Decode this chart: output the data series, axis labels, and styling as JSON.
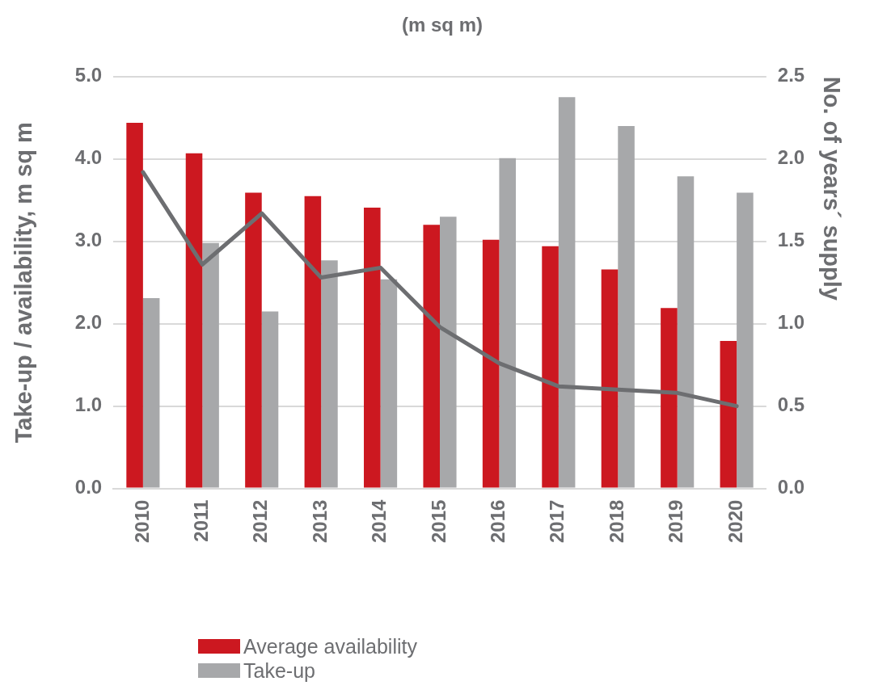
{
  "chart_data": {
    "type": "bar",
    "title": "(m sq m)",
    "ylabel": "Take-up / availability, m sq m",
    "y2label": "No. of years´ supply",
    "categories": [
      "2010",
      "2011",
      "2012",
      "2013",
      "2014",
      "2015",
      "2016",
      "2017",
      "2018",
      "2019",
      "2020"
    ],
    "series": [
      {
        "name": "Average availability",
        "color": "#cc1820",
        "values": [
          4.44,
          4.07,
          3.59,
          3.55,
          3.41,
          3.2,
          3.02,
          2.94,
          2.66,
          2.19,
          1.79
        ]
      },
      {
        "name": "Take-up",
        "color": "#a7a8aa",
        "values": [
          2.31,
          2.98,
          2.15,
          2.77,
          2.54,
          3.3,
          4.01,
          4.75,
          4.4,
          3.79,
          3.59
        ]
      },
      {
        "type": "line",
        "axis": "y2",
        "color": "#6d6e71",
        "values": [
          1.92,
          1.36,
          1.67,
          1.28,
          1.34,
          0.98,
          0.76,
          0.62,
          0.6,
          0.58,
          0.5
        ]
      }
    ],
    "ylim": [
      0,
      5
    ],
    "yticks": [
      {
        "value": 0,
        "label": "0.0"
      },
      {
        "value": 1,
        "label": "1.0"
      },
      {
        "value": 2,
        "label": "2.0"
      },
      {
        "value": 3,
        "label": "3.0"
      },
      {
        "value": 4,
        "label": "4.0"
      },
      {
        "value": 5,
        "label": "5.0"
      }
    ],
    "y2lim": [
      0,
      2.5
    ],
    "y2ticks": [
      {
        "value": 0,
        "label": "0.0"
      },
      0.5,
      {
        "value": 1,
        "label": "1.0"
      },
      1.5,
      {
        "value": 2,
        "label": "2.0"
      },
      2.5
    ],
    "grid": "y",
    "legend": "bottom",
    "marker": "none",
    "line_style": "solid"
  }
}
